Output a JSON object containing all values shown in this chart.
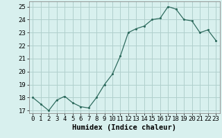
{
  "x": [
    0,
    1,
    2,
    3,
    4,
    5,
    6,
    7,
    8,
    9,
    10,
    11,
    12,
    13,
    14,
    15,
    16,
    17,
    18,
    19,
    20,
    21,
    22,
    23
  ],
  "y": [
    18.0,
    17.5,
    17.0,
    17.8,
    18.1,
    17.6,
    17.3,
    17.2,
    18.0,
    19.0,
    19.8,
    21.2,
    23.0,
    23.3,
    23.5,
    24.0,
    24.1,
    25.0,
    24.8,
    24.0,
    23.9,
    23.0,
    23.2,
    22.4
  ],
  "line_color": "#2e6b5e",
  "marker_color": "#2e6b5e",
  "bg_color": "#d8f0ee",
  "grid_color": "#b0d0cc",
  "xlabel": "Humidex (Indice chaleur)",
  "xlim": [
    -0.5,
    23.5
  ],
  "ylim": [
    16.8,
    25.4
  ],
  "yticks": [
    17,
    18,
    19,
    20,
    21,
    22,
    23,
    24,
    25
  ],
  "xticks": [
    0,
    1,
    2,
    3,
    4,
    5,
    6,
    7,
    8,
    9,
    10,
    11,
    12,
    13,
    14,
    15,
    16,
    17,
    18,
    19,
    20,
    21,
    22,
    23
  ],
  "tick_fontsize": 6.5,
  "xlabel_fontsize": 7.5
}
